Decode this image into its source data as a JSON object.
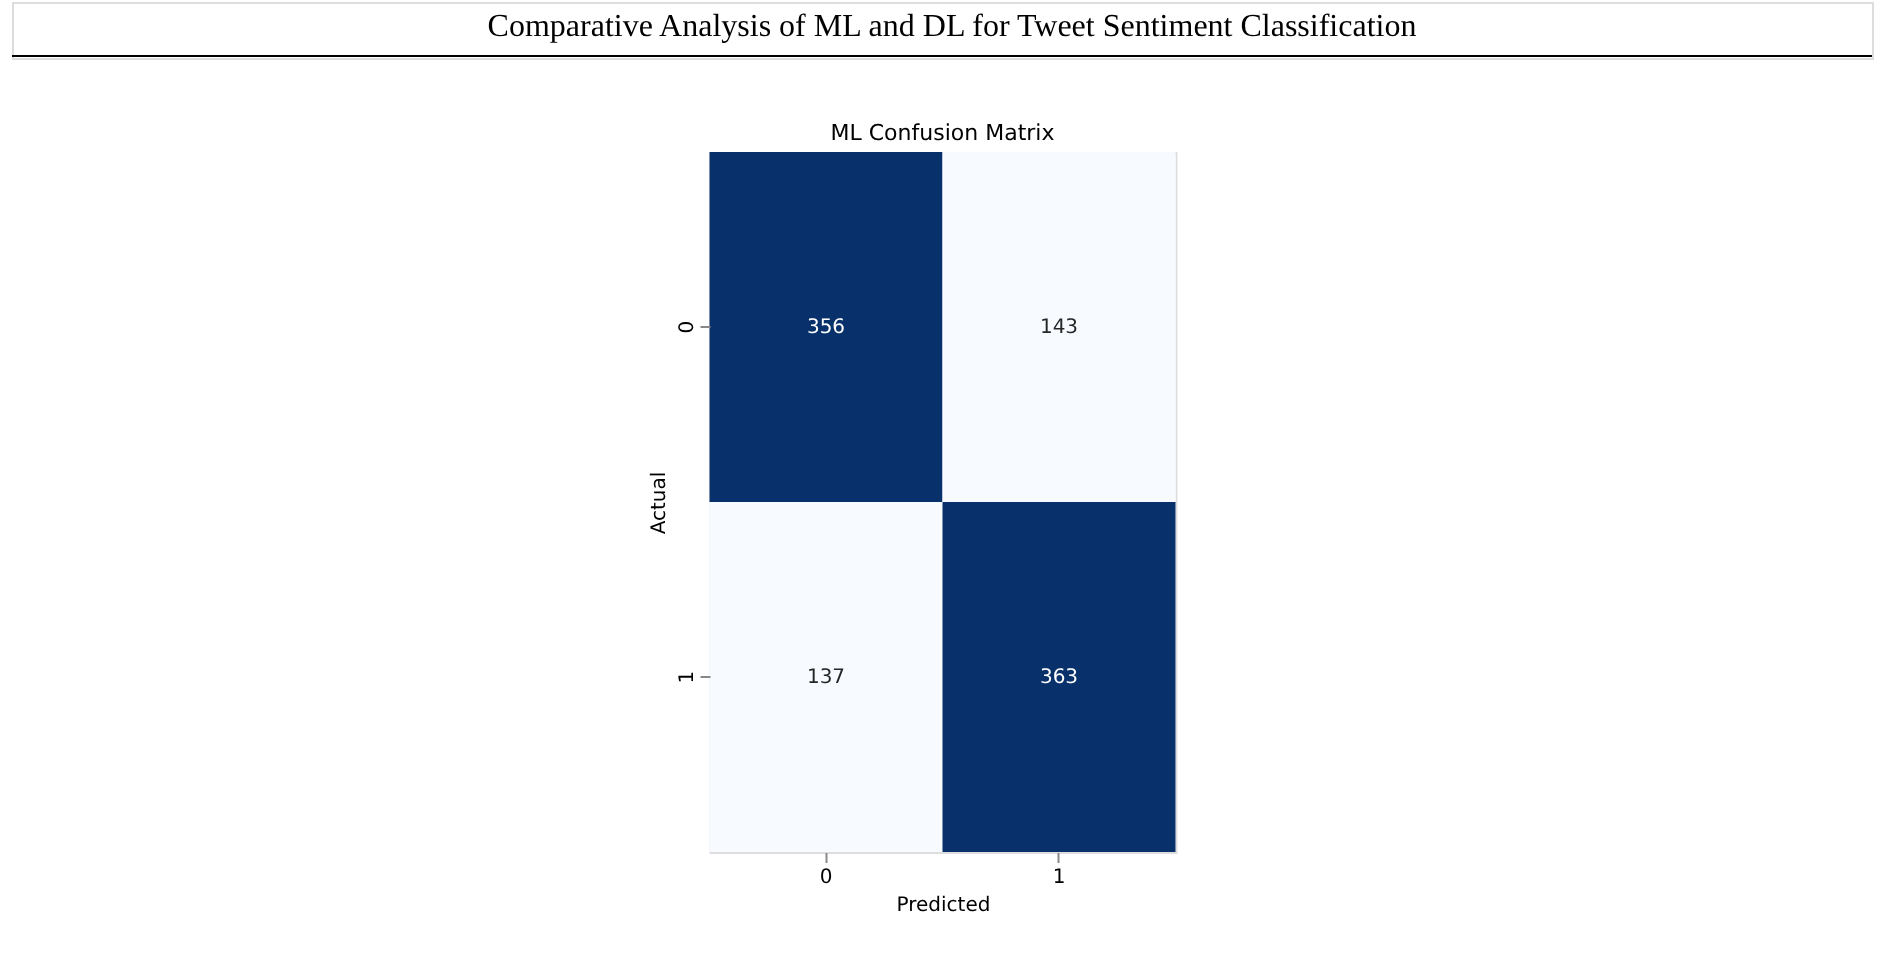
{
  "chart_data": {
    "type": "heatmap",
    "title": "ML Confusion Matrix",
    "xlabel": "Predicted",
    "ylabel": "Actual",
    "categories": [
      "0",
      "1"
    ],
    "y_categories": [
      "0",
      "1"
    ],
    "cells": [
      [
        356,
        143
      ],
      [
        137,
        363
      ]
    ],
    "colors": [
      "#08306b",
      "#f7fbff",
      "#f7fbff",
      "#08306b"
    ],
    "data_labels": true,
    "annotations": [
      "Comparative Analysis of ML and DL for Tweet Sentiment Classification"
    ]
  }
}
